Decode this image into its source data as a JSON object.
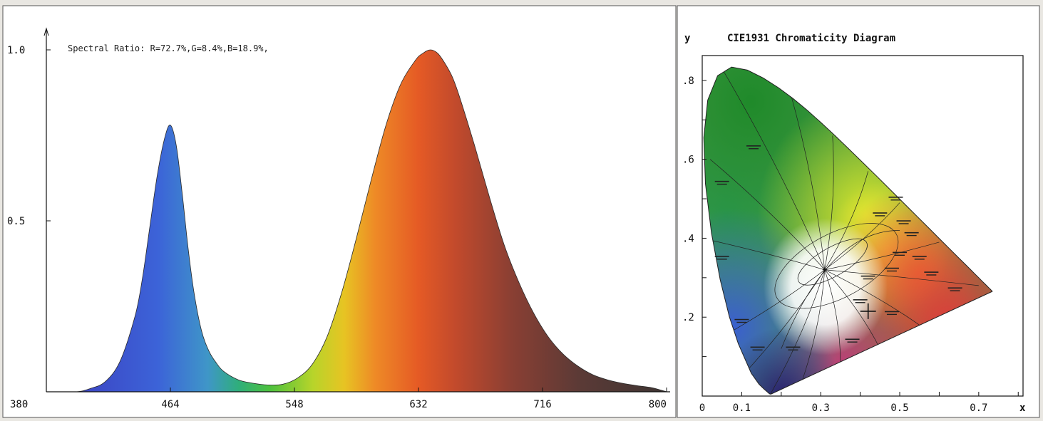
{
  "chart_data": [
    {
      "type": "area",
      "title": "",
      "annotation": "Spectral Ratio:  R=72.7%,G=8.4%,B=18.9%,",
      "xlabel": "",
      "ylabel": "",
      "xlim": [
        380,
        800
      ],
      "ylim": [
        0,
        1.0
      ],
      "x_ticks": [
        "380",
        "464",
        "548",
        "632",
        "716",
        "800"
      ],
      "y_ticks": [
        "1.0",
        "0.5"
      ],
      "grid": false,
      "fill": "spectral-gradient",
      "series": [
        {
          "x": [
            380,
            400,
            410,
            420,
            430,
            440,
            445,
            450,
            455,
            460,
            464,
            468,
            472,
            476,
            480,
            485,
            490,
            495,
            500,
            510,
            520,
            530,
            540,
            550,
            560,
            570,
            580,
            590,
            600,
            610,
            620,
            630,
            635,
            640,
            645,
            650,
            655,
            660,
            670,
            680,
            690,
            700,
            710,
            720,
            730,
            740,
            750,
            760,
            770,
            780,
            790,
            800
          ],
          "values": [
            0,
            0,
            0.01,
            0.03,
            0.09,
            0.22,
            0.33,
            0.48,
            0.63,
            0.74,
            0.78,
            0.72,
            0.58,
            0.42,
            0.29,
            0.18,
            0.12,
            0.085,
            0.06,
            0.035,
            0.025,
            0.02,
            0.022,
            0.04,
            0.08,
            0.16,
            0.29,
            0.45,
            0.62,
            0.78,
            0.9,
            0.97,
            0.99,
            1.0,
            0.99,
            0.96,
            0.92,
            0.86,
            0.72,
            0.57,
            0.43,
            0.32,
            0.23,
            0.16,
            0.11,
            0.075,
            0.05,
            0.035,
            0.025,
            0.018,
            0.012,
            0.0
          ]
        }
      ]
    },
    {
      "type": "scatter",
      "title": "CIE1931 Chromaticity Diagram",
      "xlabel": "x",
      "ylabel": "y",
      "xlim": [
        0,
        0.8
      ],
      "ylim": [
        0,
        0.85
      ],
      "x_ticks": [
        "0",
        "0.1",
        "0.3",
        "0.5",
        "0.7"
      ],
      "y_ticks": [
        ".8",
        ".6",
        ".4",
        ".2"
      ],
      "grid": false,
      "locus": {
        "x": [
          0.1741,
          0.174,
          0.1738,
          0.1736,
          0.1733,
          0.1726,
          0.1714,
          0.1689,
          0.1644,
          0.1566,
          0.144,
          0.1241,
          0.0913,
          0.0687,
          0.0454,
          0.0235,
          0.0082,
          0.0039,
          0.0139,
          0.0389,
          0.0743,
          0.1142,
          0.1547,
          0.1929,
          0.2296,
          0.2658,
          0.3016,
          0.3373,
          0.3731,
          0.4087,
          0.4441,
          0.4788,
          0.5125,
          0.5448,
          0.5752,
          0.6029,
          0.627,
          0.6482,
          0.6658,
          0.6801,
          0.6915,
          0.7006,
          0.7079,
          0.714,
          0.719,
          0.723,
          0.726,
          0.7283,
          0.73,
          0.7311,
          0.732,
          0.7327,
          0.7334,
          0.734,
          0.7344,
          0.7346,
          0.7347
        ],
        "y": [
          0.005,
          0.005,
          0.0049,
          0.0049,
          0.0048,
          0.0048,
          0.0051,
          0.0069,
          0.0109,
          0.0177,
          0.0297,
          0.0578,
          0.1327,
          0.2007,
          0.295,
          0.4127,
          0.5384,
          0.6548,
          0.7502,
          0.812,
          0.8338,
          0.8262,
          0.8059,
          0.7816,
          0.7543,
          0.7243,
          0.6923,
          0.6589,
          0.6245,
          0.5896,
          0.5547,
          0.5202,
          0.4866,
          0.4544,
          0.4242,
          0.3965,
          0.3725,
          0.3514,
          0.334,
          0.3197,
          0.3083,
          0.2993,
          0.292,
          0.2859,
          0.2809,
          0.277,
          0.274,
          0.2717,
          0.27,
          0.2689,
          0.268,
          0.2673,
          0.2666,
          0.266,
          0.2656,
          0.2654,
          0.2653
        ]
      },
      "points": [
        {
          "x": 0.42,
          "y": 0.215,
          "marker": "cross"
        }
      ],
      "white_point": {
        "x": 0.31,
        "y": 0.32
      }
    }
  ]
}
